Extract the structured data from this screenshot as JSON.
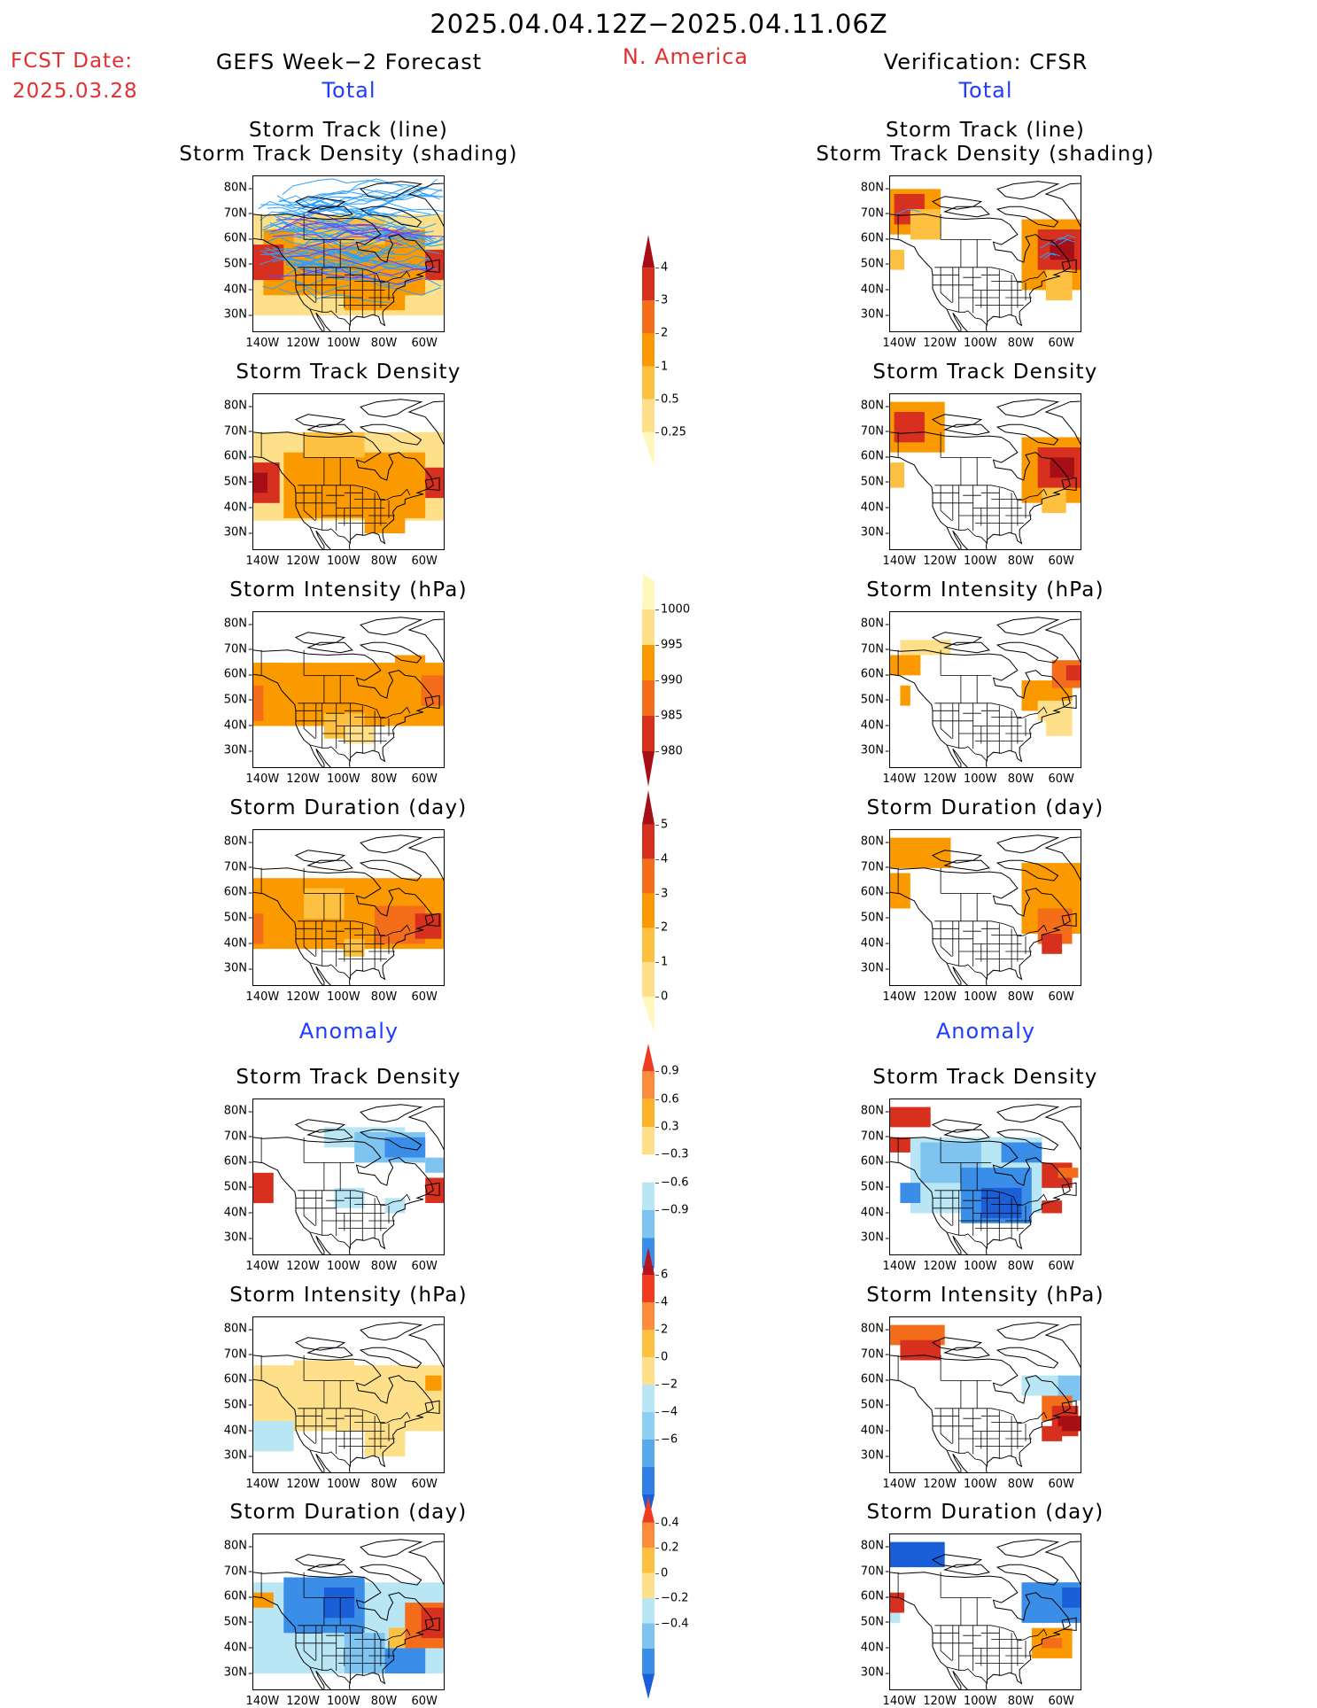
{
  "header": {
    "date_range": "2025.04.04.12Z−2025.04.11.06Z",
    "fcst_label": "FCST Date:",
    "fcst_date": "2025.03.28",
    "left_title": "GEFS Week−2 Forecast",
    "region": "N. America",
    "right_title": "Verification: CFSR"
  },
  "sections": {
    "total": "Total",
    "anomaly": "Anomaly"
  },
  "panel_titles": {
    "track_line_1": "Storm Track (line)",
    "track_line_2": "Storm Track Density (shading)",
    "density": "Storm Track Density",
    "intensity": "Storm Intensity (hPa)",
    "duration": "Storm Duration (day)"
  },
  "axes": {
    "lat": [
      "80N",
      "70N",
      "60N",
      "50N",
      "40N",
      "30N"
    ],
    "lon": [
      "140W",
      "120W",
      "100W",
      "80W",
      "60W"
    ]
  },
  "colorbars": {
    "density_total": {
      "labels": [
        "4",
        "3",
        "2",
        "1",
        "0.5",
        "0.25"
      ],
      "colors": [
        "#a50f15",
        "#d7301f",
        "#f46d1b",
        "#fb9a00",
        "#fdc040",
        "#fee08b",
        "#fff7bc"
      ]
    },
    "intensity_total": {
      "labels": [
        "1000",
        "995",
        "990",
        "985",
        "980"
      ],
      "colors": [
        "#fff7bc",
        "#fee08b",
        "#fb9a00",
        "#f46d1b",
        "#d7301f",
        "#a50f15"
      ]
    },
    "duration_total": {
      "labels": [
        "5",
        "4",
        "3",
        "2",
        "1",
        "0"
      ],
      "colors": [
        "#a50f15",
        "#d7301f",
        "#f46d1b",
        "#fb9a00",
        "#fdc040",
        "#fee08b",
        "#fff7bc"
      ]
    },
    "density_anom": {
      "labels": [
        "0.9",
        "0.6",
        "0.3",
        "−0.3",
        "−0.6",
        "−0.9"
      ],
      "colors": [
        "#f03b20",
        "#fd8d3c",
        "#fdb22a",
        "#fee08b",
        "#ffffff",
        "#b9e6f5",
        "#7fc4f0",
        "#3a8ee8",
        "#1a5fd8"
      ]
    },
    "intensity_anom": {
      "labels": [
        "6",
        "4",
        "2",
        "0",
        "−2",
        "−4",
        "−6"
      ],
      "colors": [
        "#b8141e",
        "#f03b20",
        "#fd8d3c",
        "#fdc040",
        "#fee08b",
        "#b9e6f5",
        "#8fd0f2",
        "#5aa8ee",
        "#2f7fe4",
        "#1a5fd8"
      ]
    },
    "duration_anom": {
      "labels": [
        "0.4",
        "0.2",
        "0",
        "−0.2",
        "−0.4"
      ],
      "colors": [
        "#f03b20",
        "#fd8d3c",
        "#fdc040",
        "#fee08b",
        "#b9e6f5",
        "#7fc4f0",
        "#3a8ee8",
        "#1a5fd8"
      ]
    }
  }
}
